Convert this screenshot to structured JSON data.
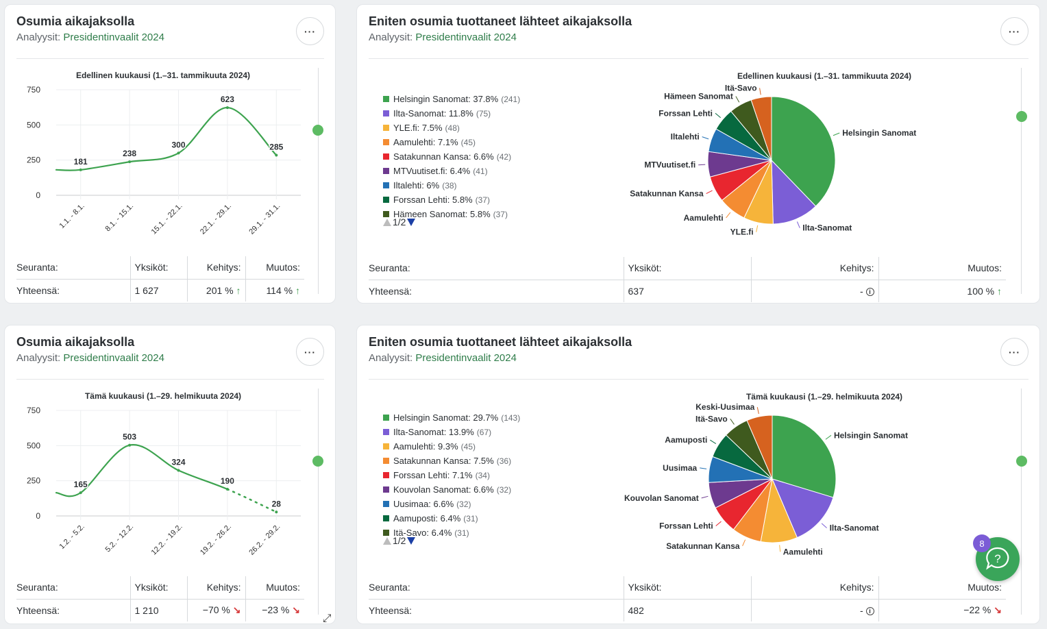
{
  "cards": [
    {
      "title": "Osumia aikajaksolla",
      "sub_prefix": "Analyysit: ",
      "sub_link": "Presidentinvaalit 2024",
      "menu": "···",
      "chart_title": "Edellinen kuukausi (1.–31. tammikuuta 2024)",
      "table": {
        "headers": [
          "Seuranta:",
          "Yksiköt:",
          "Kehitys:",
          "Muutos:"
        ],
        "row": [
          "Yhteensä:",
          "1 627",
          "201 %",
          "114 %"
        ],
        "dev_arrow": "↑",
        "chg_arrow": "↑"
      }
    },
    {
      "title": "Eniten osumia tuottaneet lähteet aikajaksolla",
      "sub_prefix": "Analyysit: ",
      "sub_link": "Presidentinvaalit 2024",
      "menu": "···",
      "chart_title": "Edellinen kuukausi (1.–31. tammikuuta 2024)",
      "pager": "1/2",
      "table": {
        "headers": [
          "Seuranta:",
          "Yksiköt:",
          "Kehitys:",
          "Muutos:"
        ],
        "row": [
          "Yhteensä:",
          "637",
          "-",
          "100 %"
        ],
        "chg_arrow": "↑"
      }
    },
    {
      "title": "Osumia aikajaksolla",
      "sub_prefix": "Analyysit: ",
      "sub_link": "Presidentinvaalit 2024",
      "menu": "···",
      "chart_title": "Tämä kuukausi (1.–29. helmikuuta 2024)",
      "table": {
        "headers": [
          "Seuranta:",
          "Yksiköt:",
          "Kehitys:",
          "Muutos:"
        ],
        "row": [
          "Yhteensä:",
          "1 210",
          "−70 %",
          "−23 %"
        ],
        "dev_arrow": "↘",
        "chg_arrow": "↘"
      }
    },
    {
      "title": "Eniten osumia tuottaneet lähteet aikajaksolla",
      "sub_prefix": "Analyysit: ",
      "sub_link": "Presidentinvaalit 2024",
      "menu": "···",
      "chart_title": "Tämä kuukausi (1.–29. helmikuuta 2024)",
      "pager": "1/2",
      "table": {
        "headers": [
          "Seuranta:",
          "Yksiköt:",
          "Kehitys:",
          "Muutos:"
        ],
        "row": [
          "Yhteensä:",
          "482",
          "-",
          "−22 %"
        ],
        "chg_arrow": "↘"
      }
    }
  ],
  "chart_data": [
    {
      "type": "line",
      "title": "Edellinen kuukausi (1.–31. tammikuuta 2024)",
      "categories": [
        "1.1. - 8.1.",
        "8.1. - 15.1.",
        "15.1. - 22.1.",
        "22.1. - 29.1.",
        "29.1. - 31.1."
      ],
      "values": [
        181,
        238,
        300,
        623,
        285
      ],
      "data_labels": [
        "181",
        "238",
        "300",
        "623",
        "285"
      ],
      "yticks": [
        "0",
        "250",
        "500",
        "750"
      ],
      "ylim": [
        0,
        750
      ],
      "color": "#3da34f",
      "grid": true
    },
    {
      "type": "pie",
      "title": "Edellinen kuukausi (1.–31. tammikuuta 2024)",
      "slices": [
        {
          "name": "Helsingin Sanomat",
          "legend": "Helsingin Sanomat: 37.8%",
          "count": "(241)",
          "value": 37.8,
          "color": "#3da34f"
        },
        {
          "name": "Ilta-Sanomat",
          "legend": "Ilta-Sanomat: 11.8%",
          "count": "(75)",
          "value": 11.8,
          "color": "#7b5ed6"
        },
        {
          "name": "YLE.fi",
          "legend": "YLE.fi: 7.5%",
          "count": "(48)",
          "value": 7.5,
          "color": "#f6b43a"
        },
        {
          "name": "Aamulehti",
          "legend": "Aamulehti: 7.1%",
          "count": "(45)",
          "value": 7.1,
          "color": "#f48c32"
        },
        {
          "name": "Satakunnan Kansa",
          "legend": "Satakunnan Kansa: 6.6%",
          "count": "(42)",
          "value": 6.6,
          "color": "#e8262f"
        },
        {
          "name": "MTVuutiset.fi",
          "legend": "MTVuutiset.fi: 6.4%",
          "count": "(41)",
          "value": 6.4,
          "color": "#6d3a8f"
        },
        {
          "name": "Iltalehti",
          "legend": "Iltalehti: 6%",
          "count": "(38)",
          "value": 6.0,
          "color": "#2371b5"
        },
        {
          "name": "Forssan Lehti",
          "legend": "Forssan Lehti: 5.8%",
          "count": "(37)",
          "value": 5.8,
          "color": "#07693f"
        },
        {
          "name": "Hämeen Sanomat",
          "legend": "Hämeen Sanomat: 5.8%",
          "count": "(37)",
          "value": 5.8,
          "color": "#3f5a1e"
        },
        {
          "name": "Itä-Savo",
          "legend": "Itä-Savo",
          "count": "",
          "value": 5.2,
          "color": "#d6621f"
        }
      ]
    },
    {
      "type": "line",
      "title": "Tämä kuukausi (1.–29. helmikuuta 2024)",
      "categories": [
        "1.2. - 5.2.",
        "5.2. - 12.2.",
        "12.2. - 19.2.",
        "19.2. - 26.2.",
        "26.2. - 29.2."
      ],
      "values": [
        165,
        503,
        324,
        190,
        28
      ],
      "data_labels": [
        "165",
        "503",
        "324",
        "190",
        "28"
      ],
      "yticks": [
        "0",
        "250",
        "500",
        "750"
      ],
      "ylim": [
        0,
        750
      ],
      "color": "#3da34f",
      "dashed_last_segment": true,
      "grid": true
    },
    {
      "type": "pie",
      "title": "Tämä kuukausi (1.–29. helmikuuta 2024)",
      "slices": [
        {
          "name": "Helsingin Sanomat",
          "legend": "Helsingin Sanomat: 29.7%",
          "count": "(143)",
          "value": 29.7,
          "color": "#3da34f"
        },
        {
          "name": "Ilta-Sanomat",
          "legend": "Ilta-Sanomat: 13.9%",
          "count": "(67)",
          "value": 13.9,
          "color": "#7b5ed6"
        },
        {
          "name": "Aamulehti",
          "legend": "Aamulehti: 9.3%",
          "count": "(45)",
          "value": 9.3,
          "color": "#f6b43a"
        },
        {
          "name": "Satakunnan Kansa",
          "legend": "Satakunnan Kansa: 7.5%",
          "count": "(36)",
          "value": 7.5,
          "color": "#f48c32"
        },
        {
          "name": "Forssan Lehti",
          "legend": "Forssan Lehti: 7.1%",
          "count": "(34)",
          "value": 7.1,
          "color": "#e8262f"
        },
        {
          "name": "Kouvolan Sanomat",
          "legend": "Kouvolan Sanomat: 6.6%",
          "count": "(32)",
          "value": 6.6,
          "color": "#6d3a8f"
        },
        {
          "name": "Uusimaa",
          "legend": "Uusimaa: 6.6%",
          "count": "(32)",
          "value": 6.6,
          "color": "#2371b5"
        },
        {
          "name": "Aamuposti",
          "legend": "Aamuposti: 6.4%",
          "count": "(31)",
          "value": 6.4,
          "color": "#07693f"
        },
        {
          "name": "Itä-Savo",
          "legend": "Itä-Savo: 6.4%",
          "count": "(31)",
          "value": 6.4,
          "color": "#3f5a1e"
        },
        {
          "name": "Keski-Uusimaa",
          "legend": "Keski-Uusimaa",
          "count": "",
          "value": 6.5,
          "color": "#d6621f"
        }
      ]
    }
  ],
  "help": {
    "badge": "8",
    "icon": "help-chat-icon"
  }
}
